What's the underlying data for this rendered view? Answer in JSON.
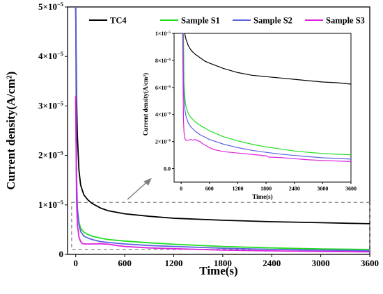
{
  "chart_data": [
    {
      "type": "line",
      "role": "main",
      "xlabel": "Time(s)",
      "ylabel": "Current density(A/cm²)",
      "xlim": [
        -100,
        3600
      ],
      "ylim": [
        0,
        5e-05
      ],
      "x_ticks": [
        0,
        600,
        1200,
        1800,
        2400,
        3000,
        3600
      ],
      "x_tick_labels": [
        "0",
        "600",
        "1200",
        "1800",
        "2400",
        "3000",
        "3600"
      ],
      "y_ticks": [
        0,
        1e-05,
        2e-05,
        3e-05,
        4e-05,
        5e-05
      ],
      "y_tick_labels": [
        {
          "mant": "0",
          "exp": ""
        },
        {
          "mant": "1×10",
          "exp": "−5"
        },
        {
          "mant": "2×10",
          "exp": "−5"
        },
        {
          "mant": "3×10",
          "exp": "−5"
        },
        {
          "mant": "4×10",
          "exp": "−5"
        },
        {
          "mant": "5×10",
          "exp": "−5"
        }
      ],
      "legend_position": "top",
      "zoom_box": {
        "x": [
          -50,
          3600
        ],
        "y": [
          1e-06,
          1.05e-05
        ]
      },
      "series": [
        {
          "name": "TC4",
          "color": "#000000",
          "x": [
            0,
            10,
            20,
            40,
            60,
            100,
            150,
            200,
            300,
            400,
            600,
            900,
            1200,
            1800,
            2400,
            3000,
            3600
          ],
          "y": [
            5e-05,
            3.2e-05,
            2.4e-05,
            1.7e-05,
            1.4e-05,
            1.2e-05,
            1.1e-05,
            1.03e-05,
            9.4e-06,
            8.8e-06,
            8.2e-06,
            7.7e-06,
            7.3e-06,
            6.9e-06,
            6.6e-06,
            6.4e-06,
            6.2e-06
          ]
        },
        {
          "name": "Sample S1",
          "color": "#22dd22",
          "x": [
            0,
            10,
            20,
            40,
            60,
            100,
            150,
            200,
            300,
            400,
            600,
            900,
            1200,
            1800,
            2400,
            3000,
            3600
          ],
          "y": [
            3.1e-05,
            1.4e-05,
            9e-06,
            6.5e-06,
            5.3e-06,
            4.5e-06,
            4e-06,
            3.7e-06,
            3.3e-06,
            3e-06,
            2.7e-06,
            2.35e-06,
            2.05e-06,
            1.6e-06,
            1.3e-06,
            1.1e-06,
            1e-06
          ]
        },
        {
          "name": "Sample S2",
          "color": "#5b62e0",
          "x": [
            0,
            10,
            20,
            40,
            60,
            100,
            150,
            200,
            300,
            400,
            600,
            900,
            1200,
            1800,
            2400,
            3000,
            3600
          ],
          "y": [
            5e-05,
            1.6e-05,
            9.5e-06,
            6e-06,
            4.6e-06,
            3.7e-06,
            3.3e-06,
            3e-06,
            2.6e-06,
            2.4e-06,
            2.1e-06,
            1.8e-06,
            1.6e-06,
            1.25e-06,
            1e-06,
            8.5e-07,
            7.5e-07
          ]
        },
        {
          "name": "Sample S3",
          "color": "#dd22dd",
          "x": [
            0,
            10,
            20,
            40,
            60,
            80,
            100,
            150,
            200,
            300,
            400,
            500,
            600,
            900,
            1200,
            1800,
            2400,
            3000,
            3600
          ],
          "y": [
            3.2e-05,
            1.1e-05,
            6e-06,
            3.5e-06,
            2.6e-06,
            2.2e-06,
            2.1e-06,
            2.1e-06,
            2.1e-06,
            2.15e-06,
            2.05e-06,
            1.8e-06,
            1.6e-06,
            1.3e-06,
            1.15e-06,
            8.5e-07,
            7e-07,
            6e-07,
            5e-07
          ]
        }
      ]
    },
    {
      "type": "line",
      "role": "inset",
      "xlabel": "Time(s)",
      "ylabel": "Current density(A/cm²)",
      "xlim": [
        -150,
        3600
      ],
      "ylim": [
        -1e-06,
        1e-05
      ],
      "x_ticks": [
        0,
        600,
        1200,
        1800,
        2400,
        3000,
        3600
      ],
      "x_tick_labels": [
        "0",
        "600",
        "1200",
        "1800",
        "2400",
        "3000",
        "3600"
      ],
      "y_ticks": [
        0,
        2e-06,
        4e-06,
        6e-06,
        8e-06,
        1e-05
      ],
      "y_tick_labels": [
        {
          "mant": "0.0",
          "exp": ""
        },
        {
          "mant": "2×10",
          "exp": "−6"
        },
        {
          "mant": "4×10",
          "exp": "−6"
        },
        {
          "mant": "6×10",
          "exp": "−6"
        },
        {
          "mant": "8×10",
          "exp": "−6"
        },
        {
          "mant": "1×10",
          "exp": "−5"
        }
      ],
      "series": [
        {
          "name": "TC4",
          "color": "#000000",
          "x": [
            75,
            100,
            150,
            200,
            250,
            300,
            400,
            500,
            600,
            900,
            1200,
            1500,
            1800,
            2100,
            2400,
            2700,
            3000,
            3300,
            3600
          ],
          "y": [
            1e-05,
            9.6e-06,
            9.1e-06,
            8.8e-06,
            8.6e-06,
            8.45e-06,
            8.2e-06,
            7.95e-06,
            7.8e-06,
            7.4e-06,
            7.1e-06,
            6.9e-06,
            6.8e-06,
            6.7e-06,
            6.6e-06,
            6.5e-06,
            6.4e-06,
            6.35e-06,
            6.25e-06
          ]
        },
        {
          "name": "Sample S1",
          "color": "#22dd22",
          "x": [
            50,
            60,
            80,
            100,
            150,
            200,
            300,
            400,
            600,
            900,
            1200,
            1500,
            1800,
            2100,
            2400,
            2700,
            3000,
            3300,
            3600
          ],
          "y": [
            1e-05,
            6.4e-06,
            5.2e-06,
            4.6e-06,
            4.1e-06,
            3.8e-06,
            3.45e-06,
            3.2e-06,
            2.8e-06,
            2.35e-06,
            2.05e-06,
            1.8e-06,
            1.6e-06,
            1.45e-06,
            1.3e-06,
            1.2e-06,
            1.12e-06,
            1.06e-06,
            1.02e-06
          ]
        },
        {
          "name": "Sample S2",
          "color": "#5b62e0",
          "x": [
            40,
            50,
            70,
            100,
            150,
            200,
            300,
            400,
            600,
            900,
            1200,
            1500,
            1800,
            2100,
            2400,
            2700,
            3000,
            3300,
            3600
          ],
          "y": [
            1e-05,
            6e-06,
            4.6e-06,
            3.9e-06,
            3.4e-06,
            3.1e-06,
            2.75e-06,
            2.5e-06,
            2.15e-06,
            1.8e-06,
            1.55e-06,
            1.35e-06,
            1.2e-06,
            1.07e-06,
            9.7e-07,
            8.8e-07,
            8e-07,
            7.5e-07,
            7e-07
          ]
        },
        {
          "name": "Sample S3",
          "color": "#dd22dd",
          "x": [
            30,
            40,
            50,
            60,
            80,
            100,
            150,
            200,
            250,
            300,
            350,
            400,
            450,
            500,
            600,
            700,
            900,
            1200,
            1500,
            1800,
            1850,
            2100,
            2400,
            2700,
            3000,
            3300,
            3600
          ],
          "y": [
            1e-05,
            6e-06,
            3.6e-06,
            2.7e-06,
            2.2e-06,
            2.1e-06,
            2.1e-06,
            2.15e-06,
            2.1e-06,
            2.15e-06,
            2.05e-06,
            2e-06,
            1.85e-06,
            1.75e-06,
            1.55e-06,
            1.4e-06,
            1.25e-06,
            1.15e-06,
            1.05e-06,
            9.5e-07,
            8.5e-07,
            8.2e-07,
            7.3e-07,
            6.5e-07,
            6e-07,
            5.6e-07,
            5.2e-07
          ]
        }
      ]
    }
  ]
}
